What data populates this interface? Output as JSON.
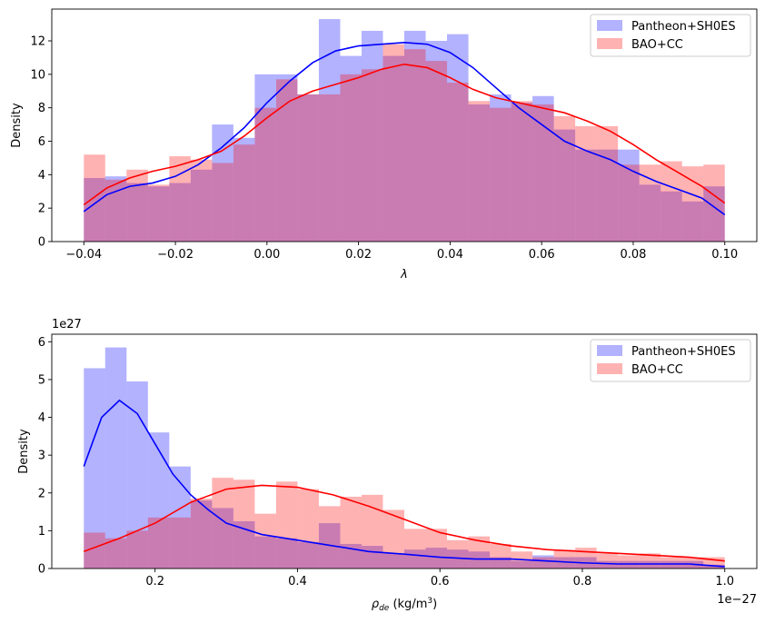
{
  "chart_data": [
    {
      "type": "histogram+kde",
      "xlabel": "λ",
      "ylabel": "Density",
      "xlim": [
        -0.047,
        0.107
      ],
      "ylim": [
        0,
        13.9
      ],
      "xticks": [
        -0.04,
        -0.02,
        0.0,
        0.02,
        0.04,
        0.06,
        0.08,
        0.1
      ],
      "xtick_labels": [
        "−0.04",
        "−0.02",
        "0.00",
        "0.02",
        "0.04",
        "0.06",
        "0.08",
        "0.10"
      ],
      "yticks": [
        0,
        2,
        4,
        6,
        8,
        10,
        12
      ],
      "ytick_labels": [
        "0",
        "2",
        "4",
        "6",
        "8",
        "10",
        "12"
      ],
      "legend_position": "top-right",
      "bin_range": [
        -0.04,
        0.1
      ],
      "series": [
        {
          "name": "Pantheon+SH0ES",
          "color": "#0000ff",
          "hist_values": [
            3.8,
            3.9,
            3.5,
            3.3,
            3.5,
            4.3,
            7.0,
            6.2,
            10.0,
            10.0,
            8.8,
            13.3,
            11.1,
            12.6,
            11.1,
            12.6,
            12.0,
            12.4,
            8.2,
            8.8,
            8.3,
            8.7,
            6.7,
            5.5,
            5.5,
            5.5,
            3.4,
            3.0,
            2.4,
            3.3
          ],
          "kde_x": [
            -0.04,
            -0.035,
            -0.03,
            -0.025,
            -0.02,
            -0.015,
            -0.01,
            -0.005,
            0.0,
            0.005,
            0.01,
            0.015,
            0.02,
            0.025,
            0.03,
            0.035,
            0.04,
            0.045,
            0.05,
            0.055,
            0.06,
            0.065,
            0.07,
            0.075,
            0.08,
            0.085,
            0.09,
            0.095,
            0.1
          ],
          "kde_y": [
            1.8,
            2.8,
            3.3,
            3.5,
            3.9,
            4.6,
            5.6,
            6.8,
            8.3,
            9.6,
            10.7,
            11.4,
            11.7,
            11.8,
            11.9,
            11.8,
            11.3,
            10.4,
            9.2,
            8.0,
            7.0,
            6.0,
            5.4,
            4.9,
            4.2,
            3.6,
            3.1,
            2.6,
            1.6
          ]
        },
        {
          "name": "BAO+CC",
          "color": "#ff0000",
          "hist_values": [
            5.2,
            3.7,
            4.3,
            3.4,
            5.1,
            4.9,
            4.7,
            5.8,
            8.0,
            9.7,
            8.8,
            8.8,
            10.0,
            10.3,
            11.8,
            11.5,
            10.8,
            9.5,
            8.4,
            8.0,
            8.4,
            8.2,
            7.5,
            6.9,
            6.9,
            4.6,
            4.6,
            4.8,
            4.5,
            4.6
          ],
          "kde_x": [
            -0.04,
            -0.035,
            -0.03,
            -0.025,
            -0.02,
            -0.015,
            -0.01,
            -0.005,
            0.0,
            0.005,
            0.01,
            0.015,
            0.02,
            0.025,
            0.03,
            0.035,
            0.04,
            0.045,
            0.05,
            0.055,
            0.06,
            0.065,
            0.07,
            0.075,
            0.08,
            0.085,
            0.09,
            0.095,
            0.1
          ],
          "kde_y": [
            2.2,
            3.2,
            3.8,
            4.2,
            4.5,
            4.9,
            5.4,
            6.3,
            7.4,
            8.4,
            9.0,
            9.4,
            9.8,
            10.3,
            10.6,
            10.4,
            9.8,
            9.1,
            8.6,
            8.3,
            8.0,
            7.7,
            7.2,
            6.6,
            5.8,
            4.9,
            4.1,
            3.3,
            2.3
          ]
        }
      ]
    },
    {
      "type": "histogram+kde",
      "xlabel": "ρde (kg/m3)",
      "xlabel_parts": {
        "rho": "ρ",
        "sub": "de",
        "units_open": " (kg/m",
        "sup": "3",
        "units_close": ")"
      },
      "ylabel": "Density",
      "y_offset_label": "1e27",
      "x_offset_label": "1e−27",
      "xlim": [
        0.055,
        1.045
      ],
      "ylim": [
        0,
        6.2
      ],
      "xticks": [
        0.2,
        0.4,
        0.6,
        0.8,
        1.0
      ],
      "xtick_labels": [
        "0.2",
        "0.4",
        "0.6",
        "0.8",
        "1.0"
      ],
      "yticks": [
        0,
        1,
        2,
        3,
        4,
        5,
        6
      ],
      "ytick_labels": [
        "0",
        "1",
        "2",
        "3",
        "4",
        "5",
        "6"
      ],
      "legend_position": "top-right",
      "bin_range": [
        0.1,
        1.0
      ],
      "series": [
        {
          "name": "Pantheon+SH0ES",
          "color": "#0000ff",
          "hist_values": [
            5.3,
            5.85,
            4.95,
            3.6,
            2.7,
            1.8,
            1.6,
            1.25,
            0.85,
            0.8,
            0.7,
            1.2,
            0.65,
            0.6,
            0.4,
            0.5,
            0.55,
            0.5,
            0.45,
            0.3,
            0.2,
            0.35,
            0.3,
            0.3,
            0.2,
            0.2,
            0.2,
            0.2,
            0.2,
            0.1
          ],
          "kde_x": [
            0.1,
            0.125,
            0.15,
            0.175,
            0.2,
            0.225,
            0.25,
            0.275,
            0.3,
            0.35,
            0.4,
            0.45,
            0.5,
            0.55,
            0.6,
            0.65,
            0.7,
            0.75,
            0.8,
            0.85,
            0.9,
            0.95,
            1.0
          ],
          "kde_y": [
            2.7,
            4.0,
            4.45,
            4.1,
            3.3,
            2.5,
            1.95,
            1.55,
            1.2,
            0.9,
            0.75,
            0.6,
            0.45,
            0.38,
            0.3,
            0.25,
            0.25,
            0.2,
            0.15,
            0.12,
            0.12,
            0.12,
            0.05
          ]
        },
        {
          "name": "BAO+CC",
          "color": "#ff0000",
          "hist_values": [
            0.95,
            0.8,
            1.0,
            1.35,
            1.35,
            1.85,
            2.4,
            2.35,
            1.45,
            2.3,
            2.1,
            1.65,
            1.9,
            1.95,
            1.55,
            1.05,
            1.05,
            0.75,
            0.85,
            0.65,
            0.45,
            0.3,
            0.5,
            0.55,
            0.4,
            0.35,
            0.4,
            0.3,
            0.3,
            0.3
          ],
          "kde_x": [
            0.1,
            0.15,
            0.2,
            0.25,
            0.3,
            0.35,
            0.4,
            0.45,
            0.5,
            0.55,
            0.6,
            0.65,
            0.7,
            0.75,
            0.8,
            0.85,
            0.9,
            0.95,
            1.0
          ],
          "kde_y": [
            0.45,
            0.8,
            1.2,
            1.75,
            2.1,
            2.2,
            2.15,
            1.95,
            1.65,
            1.3,
            0.95,
            0.75,
            0.6,
            0.5,
            0.45,
            0.4,
            0.35,
            0.3,
            0.2
          ]
        }
      ]
    }
  ]
}
